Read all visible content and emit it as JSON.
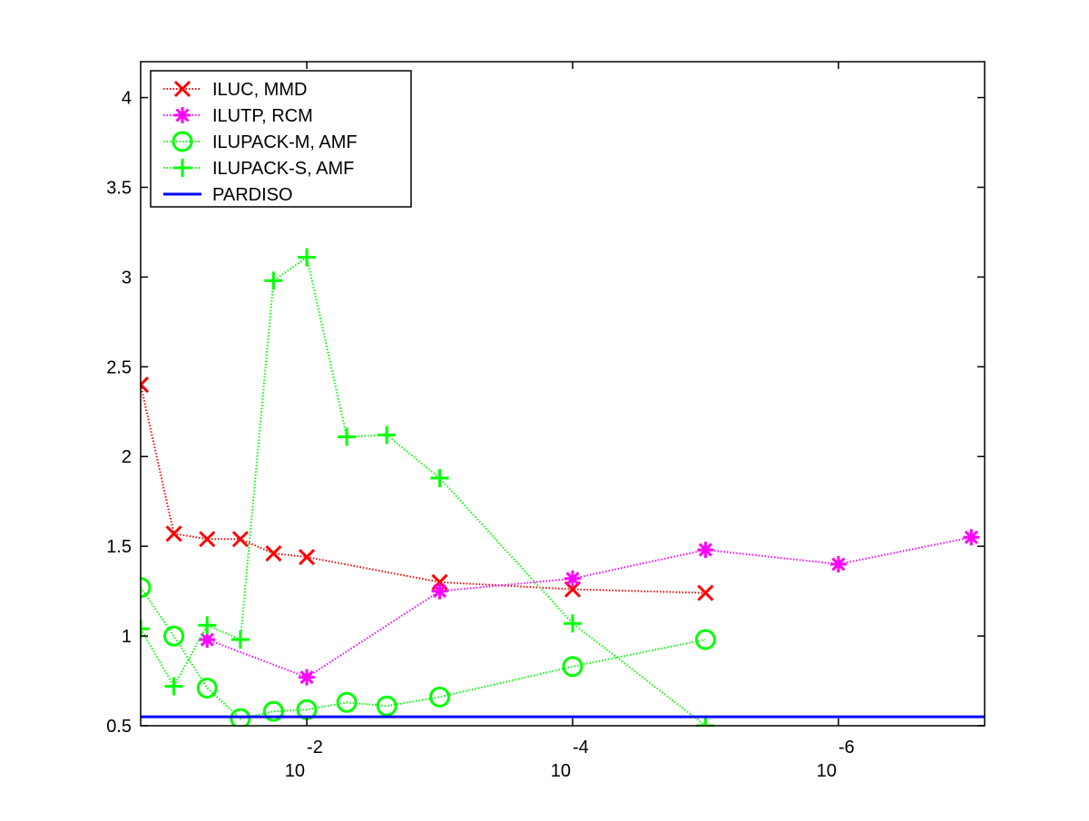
{
  "chart_data": {
    "type": "line",
    "title": "",
    "xlabel": "",
    "ylabel": "",
    "x_scale": "log",
    "x_direction": "decreasing",
    "xlim": [
      0.1778,
      7.94e-08
    ],
    "ylim": [
      0.5,
      4.2
    ],
    "x_ticks": [
      0.01,
      0.0001,
      1e-06
    ],
    "x_tick_labels": [
      {
        "base": "10",
        "exp": "-2"
      },
      {
        "base": "10",
        "exp": "-4"
      },
      {
        "base": "10",
        "exp": "-6"
      }
    ],
    "y_ticks": [
      0.5,
      1,
      1.5,
      2,
      2.5,
      3,
      3.5,
      4
    ],
    "y_tick_labels": [
      "0.5",
      "1",
      "1.5",
      "2",
      "2.5",
      "3",
      "3.5",
      "4"
    ],
    "grid": false,
    "legend_position": "top-left",
    "series": [
      {
        "name": "ILUC, MMD",
        "color": "#ff0000",
        "marker": "x",
        "line_style": "dotted",
        "x": [
          0.1778,
          0.1,
          0.0562,
          0.0316,
          0.0178,
          0.01,
          0.001,
          0.0001,
          1e-05
        ],
        "y": [
          2.4,
          1.57,
          1.54,
          1.54,
          1.46,
          1.44,
          1.3,
          1.26,
          1.24
        ]
      },
      {
        "name": "ILUTP, RCM",
        "color": "#ff00ff",
        "marker": "asterisk",
        "line_style": "dotted",
        "x": [
          0.0562,
          0.01,
          0.001,
          0.0001,
          1e-05,
          1e-06,
          1e-07
        ],
        "y": [
          0.98,
          0.77,
          1.25,
          1.32,
          1.48,
          1.4,
          1.55
        ]
      },
      {
        "name": "ILUPACK-M, AMF",
        "color": "#00ff00",
        "marker": "circle",
        "line_style": "dotted",
        "x": [
          0.1778,
          0.1,
          0.0562,
          0.0316,
          0.0178,
          0.01,
          0.005,
          0.0025,
          0.001,
          0.0001,
          1e-05
        ],
        "y": [
          1.27,
          1.0,
          0.71,
          0.54,
          0.58,
          0.59,
          0.63,
          0.61,
          0.66,
          0.83,
          0.98
        ]
      },
      {
        "name": "ILUPACK-S, AMF",
        "color": "#00ff00",
        "marker": "plus",
        "line_style": "dotted",
        "x": [
          0.1778,
          0.1,
          0.0562,
          0.0316,
          0.0178,
          0.01,
          0.005,
          0.0025,
          0.001,
          0.0001,
          1e-05
        ],
        "y": [
          1.04,
          0.72,
          1.06,
          0.98,
          2.98,
          3.11,
          2.11,
          2.12,
          1.88,
          1.07,
          0.5
        ]
      },
      {
        "name": "PARDISO",
        "color": "#0000ff",
        "marker": "none",
        "line_style": "solid",
        "x": [
          0.1778,
          7.94e-08
        ],
        "y": [
          0.55,
          0.55
        ]
      }
    ]
  }
}
